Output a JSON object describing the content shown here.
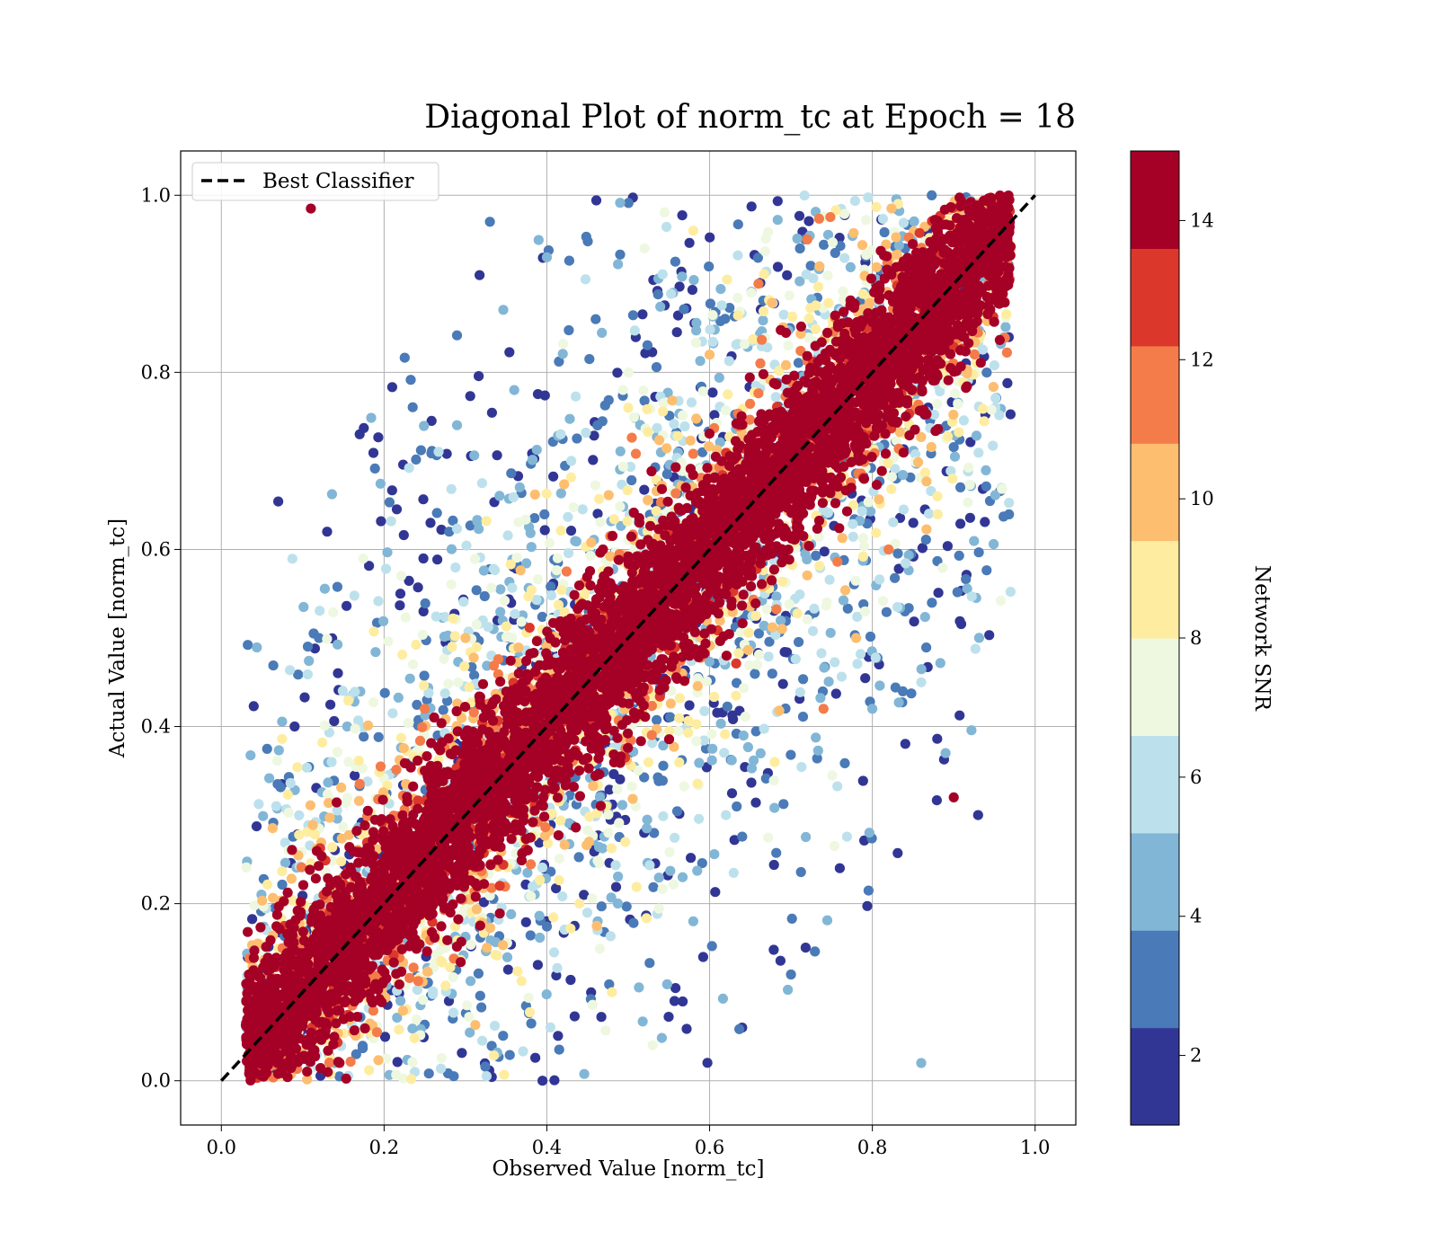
{
  "chart_data": {
    "type": "scatter",
    "title": "Diagonal Plot of norm_tc at Epoch = 18",
    "xlabel": "Observed Value [norm_tc]",
    "ylabel": "Actual Value [norm_tc]",
    "xlim": [
      -0.05,
      1.05
    ],
    "ylim": [
      -0.05,
      1.05
    ],
    "x_ticks": [
      "0.0",
      "0.2",
      "0.4",
      "0.6",
      "0.8",
      "1.0"
    ],
    "y_ticks": [
      "0.0",
      "0.2",
      "0.4",
      "0.6",
      "0.8",
      "1.0"
    ],
    "grid": true,
    "legend": {
      "position": "upper-left",
      "entries": [
        {
          "label": "Best Classifier",
          "style": "dashed",
          "color": "#000000"
        }
      ]
    },
    "reference_line": {
      "x": [
        0.0,
        1.0
      ],
      "y": [
        0.0,
        1.0
      ]
    },
    "colorbar": {
      "label": "Network SNR",
      "range": [
        1,
        15
      ],
      "ticks": [
        "2",
        "4",
        "6",
        "8",
        "10",
        "12",
        "14"
      ],
      "tick_values": [
        2,
        4,
        6,
        8,
        10,
        12,
        14
      ],
      "levels": [
        {
          "from": 1.0,
          "to": 2.4,
          "color": "#313695"
        },
        {
          "from": 2.4,
          "to": 3.8,
          "color": "#4a7ab7"
        },
        {
          "from": 3.8,
          "to": 5.2,
          "color": "#82b6d6"
        },
        {
          "from": 5.2,
          "to": 6.6,
          "color": "#bde1ec"
        },
        {
          "from": 6.6,
          "to": 8.0,
          "color": "#eef8e0"
        },
        {
          "from": 8.0,
          "to": 9.4,
          "color": "#feeda1"
        },
        {
          "from": 9.4,
          "to": 10.8,
          "color": "#fdbe70"
        },
        {
          "from": 10.8,
          "to": 12.2,
          "color": "#f47c4a"
        },
        {
          "from": 12.2,
          "to": 13.6,
          "color": "#db382b"
        },
        {
          "from": 13.6,
          "to": 15.0,
          "color": "#a50026"
        }
      ]
    },
    "series": [
      {
        "description_points": "sample points (observed, actual, snr)",
        "points": [
          [
            0.11,
            0.985,
            14
          ],
          [
            0.12,
            0.5,
            3
          ],
          [
            0.13,
            0.62,
            2
          ],
          [
            0.09,
            0.4,
            2
          ],
          [
            0.17,
            0.73,
            2
          ],
          [
            0.33,
            0.97,
            3
          ],
          [
            0.4,
            0.93,
            4
          ],
          [
            0.46,
            0.86,
            3
          ],
          [
            0.52,
            0.94,
            7
          ],
          [
            0.58,
            0.96,
            8
          ],
          [
            0.36,
            0.78,
            5
          ],
          [
            0.43,
            0.7,
            6
          ],
          [
            0.5,
            0.76,
            9
          ],
          [
            0.28,
            0.62,
            3
          ],
          [
            0.22,
            0.55,
            2
          ],
          [
            0.3,
            0.5,
            10
          ],
          [
            0.25,
            0.42,
            12
          ],
          [
            0.66,
            0.9,
            11
          ],
          [
            0.72,
            0.95,
            12
          ],
          [
            0.6,
            0.82,
            10
          ],
          [
            0.93,
            0.3,
            2
          ],
          [
            0.9,
            0.32,
            14
          ],
          [
            0.89,
            0.37,
            5
          ],
          [
            0.86,
            0.45,
            6
          ],
          [
            0.84,
            0.53,
            3
          ],
          [
            0.8,
            0.42,
            4
          ],
          [
            0.76,
            0.24,
            2
          ],
          [
            0.7,
            0.12,
            3
          ],
          [
            0.64,
            0.06,
            2
          ],
          [
            0.58,
            0.18,
            5
          ],
          [
            0.53,
            0.04,
            7
          ],
          [
            0.48,
            0.1,
            8
          ],
          [
            0.44,
            0.2,
            9
          ],
          [
            0.62,
            0.3,
            6
          ],
          [
            0.68,
            0.36,
            8
          ],
          [
            0.78,
            0.5,
            10
          ],
          [
            0.74,
            0.42,
            11
          ],
          [
            0.82,
            0.6,
            12
          ],
          [
            0.88,
            0.66,
            9
          ],
          [
            0.86,
            0.02,
            5
          ]
        ]
      }
    ]
  }
}
